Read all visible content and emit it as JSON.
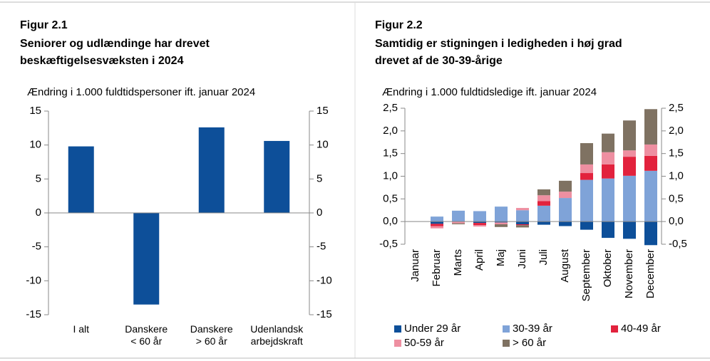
{
  "chart_data": [
    {
      "type": "bar",
      "title": "Figur 2.1",
      "subtitle": [
        "Seniorer og udlændinge har drevet",
        "beskæftigelsesvæksten i 2024"
      ],
      "y_label": "Ændring i 1.000 fuldtidspersoner ift. januar 2024",
      "categories": [
        [
          "I alt"
        ],
        [
          "Danskere",
          "< 60 år"
        ],
        [
          "Danskere",
          "> 60 år"
        ],
        [
          "Udenlandsk",
          "arbejdskraft"
        ]
      ],
      "values": [
        9.8,
        -13.5,
        12.6,
        10.6
      ],
      "color": "#0d4f99",
      "ylim": [
        -15,
        15
      ],
      "yticks": [
        -15,
        -10,
        -5,
        0,
        5,
        10,
        15
      ]
    },
    {
      "type": "stacked_bar",
      "title": "Figur 2.2",
      "subtitle": [
        "Samtidig er stigningen i ledigheden i høj grad",
        "drevet af de 30-39-årige"
      ],
      "y_label": "Ændring i 1.000 fuldtidsledige ift. januar 2024",
      "categories": [
        "Januar",
        "Februar",
        "Marts",
        "April",
        "Maj",
        "Juni",
        "Juli",
        "August",
        "September",
        "Oktober",
        "November",
        "December"
      ],
      "series": [
        {
          "name": "Under 29 år",
          "color": "#0d4f99",
          "values": [
            0,
            -0.05,
            0,
            -0.03,
            -0.02,
            -0.06,
            -0.07,
            -0.1,
            -0.18,
            -0.36,
            -0.38,
            -0.52
          ]
        },
        {
          "name": "30-39 år",
          "color": "#7fa3d8",
          "values": [
            0,
            0.11,
            0.24,
            0.23,
            0.33,
            0.25,
            0.35,
            0.52,
            0.92,
            0.95,
            1.01,
            1.12
          ]
        },
        {
          "name": "40-49 år",
          "color": "#e2223d",
          "values": [
            0,
            -0.05,
            0,
            -0.05,
            0,
            -0.02,
            0.1,
            0,
            0.15,
            0.31,
            0.42,
            0.33
          ]
        },
        {
          "name": "50-59 år",
          "color": "#ee8fa1",
          "values": [
            0,
            -0.05,
            -0.04,
            -0.03,
            -0.04,
            0.05,
            0.13,
            0.14,
            0.19,
            0.27,
            0.14,
            0.25
          ]
        },
        {
          "name": "> 60 år",
          "color": "#7f7262",
          "values": [
            0,
            0,
            -0.02,
            0,
            -0.06,
            -0.05,
            0.13,
            0.24,
            0.47,
            0.41,
            0.66,
            0.78
          ]
        }
      ],
      "ylim": [
        -0.5,
        2.5
      ],
      "yticks": [
        {
          "value": -0.5,
          "label": "-0,5"
        },
        {
          "value": 0,
          "label": "0,0"
        },
        {
          "value": 0.5,
          "label": "0,5"
        },
        {
          "value": 1,
          "label": "1,0"
        },
        {
          "value": 1.5,
          "label": "1,5"
        },
        {
          "value": 2,
          "label": "2,0"
        },
        {
          "value": 2.5,
          "label": "2,5"
        }
      ]
    }
  ]
}
